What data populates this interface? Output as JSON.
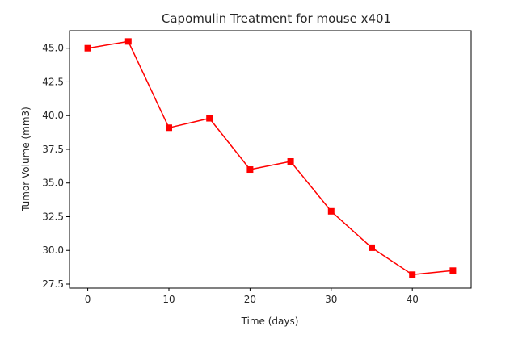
{
  "chart_data": {
    "type": "line",
    "title": "Capomulin Treatment for mouse x401",
    "xlabel": "Time (days)",
    "ylabel": "Tumor Volume (mm3)",
    "x": [
      0,
      5,
      10,
      15,
      20,
      25,
      30,
      35,
      40,
      45
    ],
    "series": [
      {
        "values": [
          45.0,
          45.5,
          39.1,
          39.8,
          36.0,
          36.6,
          32.9,
          30.2,
          28.2,
          28.5
        ],
        "color": "#ff0000",
        "marker": "square"
      }
    ],
    "xlim": [
      -2.25,
      47.25
    ],
    "ylim": [
      27.2,
      46.3
    ],
    "xticks": [
      0,
      10,
      20,
      30,
      40
    ],
    "xtick_labels": [
      "0",
      "10",
      "20",
      "30",
      "40"
    ],
    "yticks": [
      27.5,
      30.0,
      32.5,
      35.0,
      37.5,
      40.0,
      42.5,
      45.0
    ],
    "ytick_labels": [
      "27.5",
      "30.0",
      "32.5",
      "35.0",
      "37.5",
      "40.0",
      "42.5",
      "45.0"
    ],
    "grid": false,
    "legend": "none"
  }
}
